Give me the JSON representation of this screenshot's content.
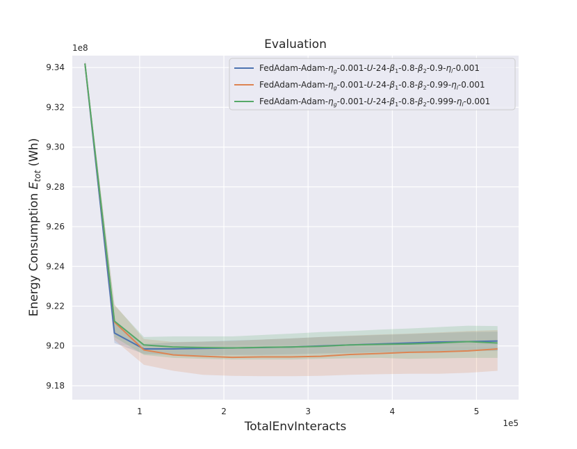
{
  "chart_data": {
    "type": "line",
    "title": "Evaluation",
    "xlabel": "TotalEnvInteracts",
    "ylabel": "Energy Consumption E_tot (Wh)",
    "ylabel_parts": {
      "pre": "Energy Consumption ",
      "var": "E",
      "sub": "tot",
      "post": " (Wh)"
    },
    "x_offset_label": "1e5",
    "y_offset_label": "1e8",
    "xlim": [
      0.2,
      5.5
    ],
    "ylim": [
      9.173,
      9.346
    ],
    "x_ticks": [
      1,
      2,
      3,
      4,
      5
    ],
    "x_tick_labels": [
      "1",
      "2",
      "3",
      "4",
      "5"
    ],
    "y_ticks": [
      9.18,
      9.2,
      9.22,
      9.24,
      9.26,
      9.28,
      9.3,
      9.32,
      9.34
    ],
    "y_tick_labels": [
      "9.18",
      "9.20",
      "9.22",
      "9.24",
      "9.26",
      "9.28",
      "9.30",
      "9.32",
      "9.34"
    ],
    "grid": true,
    "legend_position": "top-right",
    "x": [
      0.35,
      0.7,
      1.05,
      1.4,
      1.75,
      2.1,
      2.45,
      2.8,
      3.15,
      3.5,
      3.85,
      4.2,
      4.55,
      4.9,
      5.25
    ],
    "series": [
      {
        "name": "FedAdam-Adam-η_g-0.001-U-24-β_1-0.8-β_2-0.9-η_l-0.001",
        "legend_parts": [
          "FedAdam-Adam-",
          "η",
          "g",
          "-0.001-",
          "U",
          "-24-",
          "β",
          "1",
          "-0.8-",
          "β",
          "2",
          "-0.9-",
          "η",
          "l",
          "-0.001"
        ],
        "color": "#4c72b0",
        "values": [
          9.342,
          9.2065,
          9.1985,
          9.1985,
          9.1988,
          9.199,
          9.1992,
          9.1995,
          9.2,
          9.2005,
          9.201,
          9.2015,
          9.202,
          9.2022,
          9.2025
        ],
        "lower": [
          9.3405,
          9.2015,
          9.196,
          9.1955,
          9.1952,
          9.1955,
          9.1955,
          9.1958,
          9.1962,
          9.1965,
          9.1968,
          9.197,
          9.1972,
          9.1975,
          9.1975
        ],
        "upper": [
          9.3435,
          9.2115,
          9.201,
          9.2018,
          9.2022,
          9.2028,
          9.2032,
          9.2038,
          9.2045,
          9.205,
          9.2055,
          9.206,
          9.2065,
          9.207,
          9.2072
        ]
      },
      {
        "name": "FedAdam-Adam-η_g-0.001-U-24-β_1-0.8-β_2-0.99-η_l-0.001",
        "legend_parts": [
          "FedAdam-Adam-",
          "η",
          "g",
          "-0.001-",
          "U",
          "-24-",
          "β",
          "1",
          "-0.8-",
          "β",
          "2",
          "-0.99-",
          "η",
          "l",
          "-0.001"
        ],
        "color": "#dd8452",
        "values": [
          9.342,
          9.212,
          9.198,
          9.1955,
          9.1948,
          9.1943,
          9.1945,
          9.1945,
          9.1948,
          9.1957,
          9.1962,
          9.1968,
          9.197,
          9.1975,
          9.1985
        ],
        "lower": [
          9.3405,
          9.203,
          9.1905,
          9.1875,
          9.1855,
          9.185,
          9.1848,
          9.1848,
          9.185,
          9.1855,
          9.1858,
          9.186,
          9.186,
          9.1865,
          9.1875
        ],
        "upper": [
          9.3435,
          9.221,
          9.2035,
          9.202,
          9.2022,
          9.2025,
          9.2032,
          9.2038,
          9.2045,
          9.2052,
          9.2058,
          9.2062,
          9.2068,
          9.2075,
          9.208
        ]
      },
      {
        "name": "FedAdam-Adam-η_g-0.001-U-24-β_1-0.8-β_2-0.999-η_l-0.001",
        "legend_parts": [
          "FedAdam-Adam-",
          "η",
          "g",
          "-0.001-",
          "U",
          "-24-",
          "β",
          "1",
          "-0.8-",
          "β",
          "2",
          "-0.999-",
          "η",
          "l",
          "-0.001"
        ],
        "color": "#55a868",
        "values": [
          9.342,
          9.2125,
          9.2005,
          9.1995,
          9.1992,
          9.199,
          9.1993,
          9.1995,
          9.1998,
          9.2005,
          9.2008,
          9.201,
          9.2015,
          9.2022,
          9.2015
        ],
        "lower": [
          9.3405,
          9.2045,
          9.1955,
          9.194,
          9.1935,
          9.1932,
          9.1932,
          9.1932,
          9.1935,
          9.1938,
          9.194,
          9.1935,
          9.1938,
          9.194,
          9.194
        ],
        "upper": [
          9.3435,
          9.2205,
          9.2045,
          9.2048,
          9.2048,
          9.2048,
          9.2055,
          9.2062,
          9.207,
          9.2075,
          9.2082,
          9.2088,
          9.2095,
          9.2102,
          9.21
        ]
      }
    ]
  }
}
